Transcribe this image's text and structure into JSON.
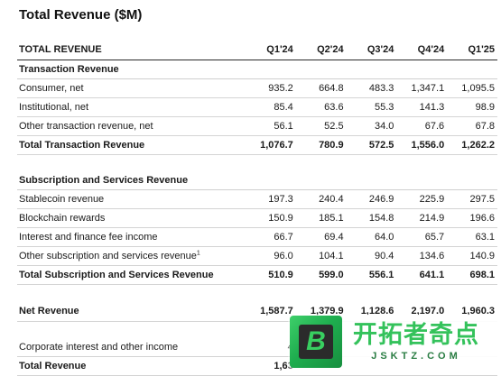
{
  "title": "Total Revenue ($M)",
  "table": {
    "header": {
      "label": "TOTAL REVENUE",
      "periods": [
        "Q1'24",
        "Q2'24",
        "Q3'24",
        "Q4'24",
        "Q1'25"
      ]
    },
    "transaction": {
      "heading": "Transaction Revenue",
      "items": [
        {
          "label": "Consumer, net",
          "values": [
            "935.2",
            "664.8",
            "483.3",
            "1,347.1",
            "1,095.5"
          ]
        },
        {
          "label": "Institutional, net",
          "values": [
            "85.4",
            "63.6",
            "55.3",
            "141.3",
            "98.9"
          ]
        },
        {
          "label": "Other transaction revenue, net",
          "values": [
            "56.1",
            "52.5",
            "34.0",
            "67.6",
            "67.8"
          ]
        }
      ],
      "total": {
        "label": "Total Transaction Revenue",
        "values": [
          "1,076.7",
          "780.9",
          "572.5",
          "1,556.0",
          "1,262.2"
        ]
      }
    },
    "subscription": {
      "heading": "Subscription and Services Revenue",
      "items": [
        {
          "label": "Stablecoin revenue",
          "values": [
            "197.3",
            "240.4",
            "246.9",
            "225.9",
            "297.5"
          ]
        },
        {
          "label": "Blockchain rewards",
          "values": [
            "150.9",
            "185.1",
            "154.8",
            "214.9",
            "196.6"
          ]
        },
        {
          "label": "Interest and finance fee income",
          "values": [
            "66.7",
            "69.4",
            "64.0",
            "65.7",
            "63.1"
          ]
        },
        {
          "label": "Other subscription and services revenue",
          "footnote": "1",
          "values": [
            "96.0",
            "104.1",
            "90.4",
            "134.6",
            "140.9"
          ]
        }
      ],
      "total": {
        "label": "Total Subscription and Services Revenue",
        "values": [
          "510.9",
          "599.0",
          "556.1",
          "641.1",
          "698.1"
        ]
      }
    },
    "net_revenue": {
      "label": "Net Revenue",
      "values": [
        "1,587.7",
        "1,379.9",
        "1,128.6",
        "2,197.0",
        "1,960.3"
      ]
    },
    "corporate_interest": {
      "label": "Corporate interest and other income",
      "values": [
        "4",
        "",
        "",
        "",
        ""
      ]
    },
    "total_revenue": {
      "label": "Total Revenue",
      "values": [
        "1,63",
        "",
        "",
        "",
        ""
      ]
    }
  },
  "watermark": {
    "logo_letter": "B",
    "brand_cn": "开拓者奇点",
    "brand_url": "JSKTZ.COM",
    "colors": {
      "green": "#34c25b",
      "dark": "#2b2b2b"
    },
    "icon": "brand-logo-icon"
  }
}
